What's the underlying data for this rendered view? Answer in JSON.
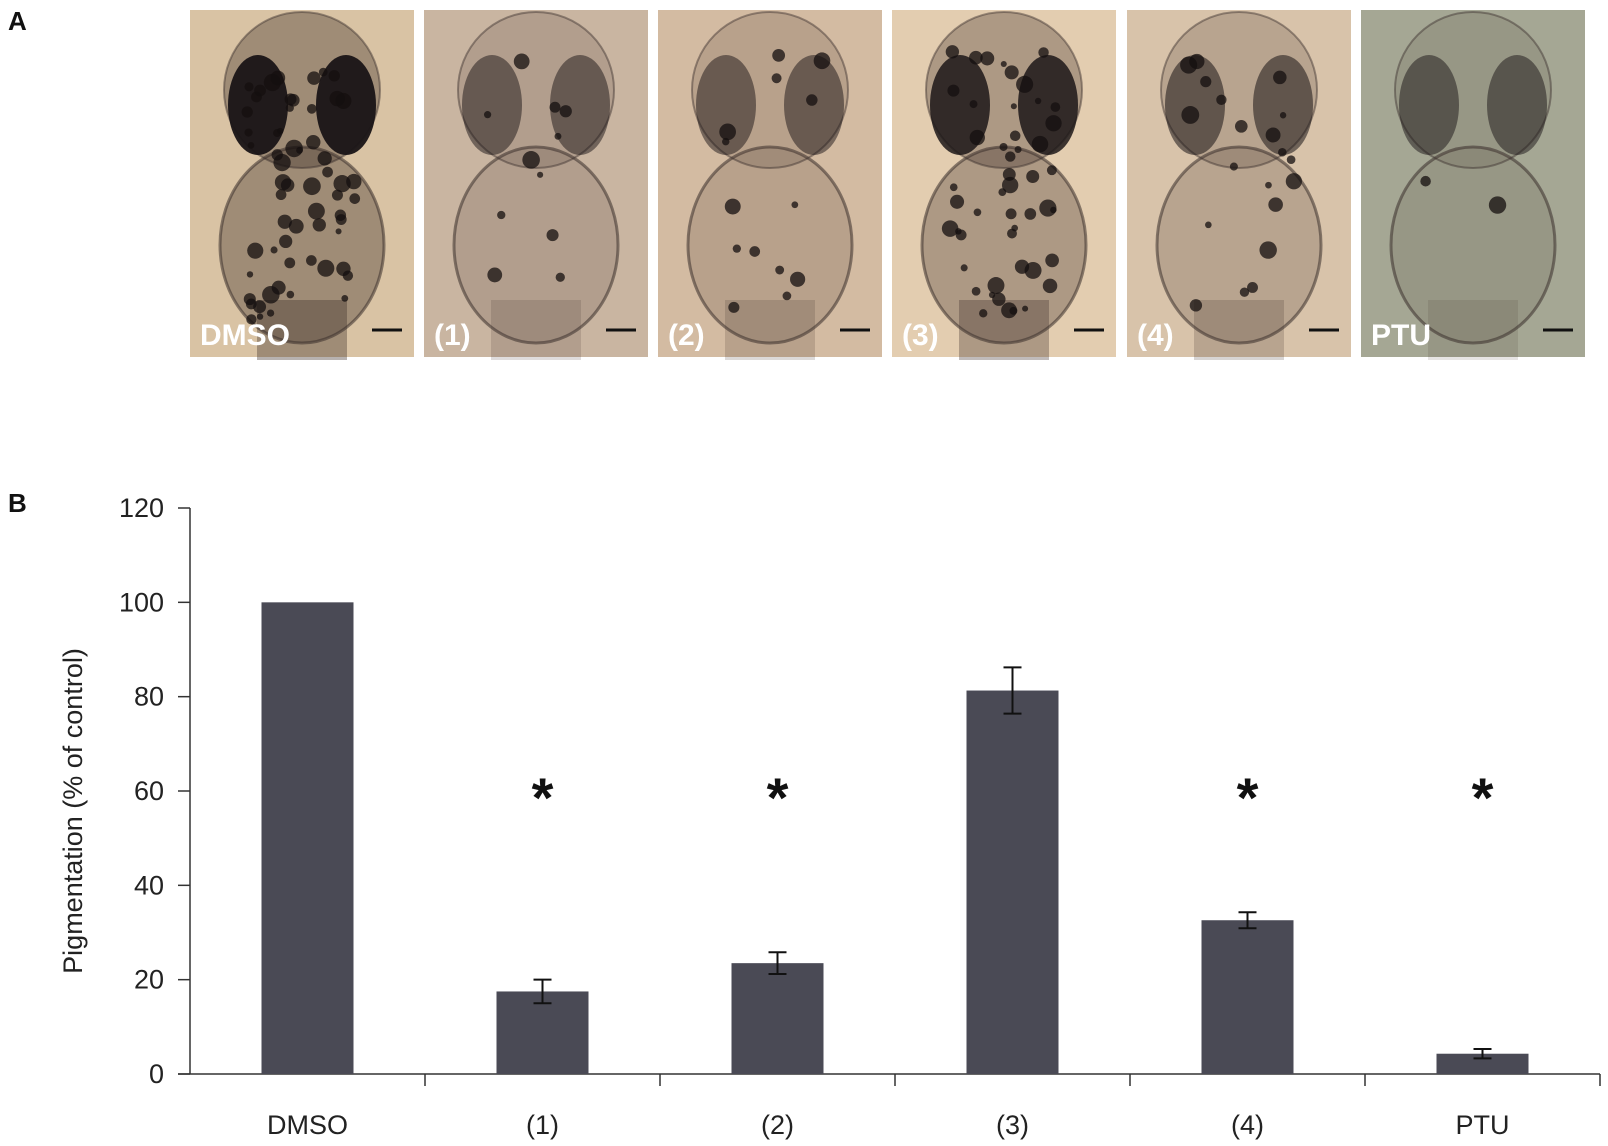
{
  "panel_a": {
    "letter": "A",
    "panels": [
      {
        "label": "DMSO",
        "bg": "#d9c3a4",
        "pigment": 1.0
      },
      {
        "label": "(1)",
        "bg": "#c9b5a1",
        "pigment": 0.18
      },
      {
        "label": "(2)",
        "bg": "#d3bba2",
        "pigment": 0.24
      },
      {
        "label": "(3)",
        "bg": "#e3cdb0",
        "pigment": 0.81
      },
      {
        "label": "(4)",
        "bg": "#d8c3aa",
        "pigment": 0.33
      },
      {
        "label": "PTU",
        "bg": "#a5a794",
        "pigment": 0.04
      }
    ]
  },
  "panel_b": {
    "letter": "B"
  },
  "chart_data": {
    "type": "bar",
    "categories": [
      "DMSO",
      "(1)",
      "(2)",
      "(3)",
      "(4)",
      "PTU"
    ],
    "values": [
      100,
      17.5,
      23.5,
      81.3,
      32.6,
      4.3
    ],
    "errors": [
      0,
      2.5,
      2.3,
      4.9,
      1.7,
      1.0
    ],
    "significant": [
      false,
      true,
      true,
      false,
      true,
      true
    ],
    "significance_marker": "*",
    "ylabel": "Pigmentation (% of control)",
    "ylim": [
      0,
      120
    ],
    "yticks": [
      0,
      20,
      40,
      60,
      80,
      100,
      120
    ],
    "bar_color": "#4a4a55",
    "grid": false
  }
}
